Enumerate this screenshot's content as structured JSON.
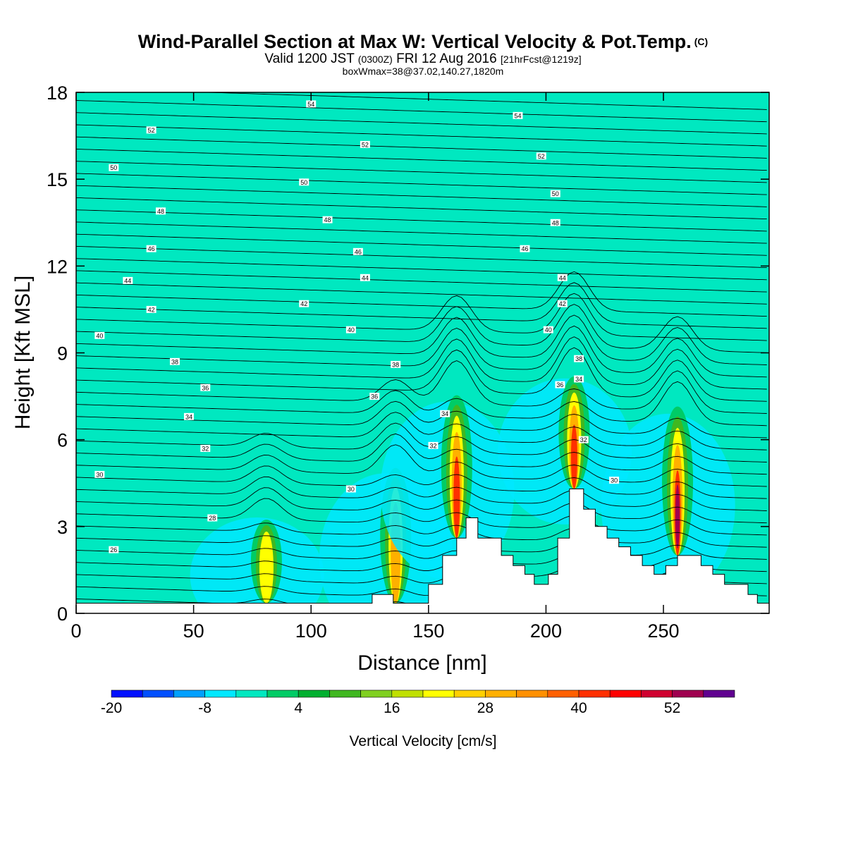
{
  "title": {
    "main": "Wind-Parallel Section at Max W: Vertical Velocity & Pot.Temp.",
    "copyright": "(C)",
    "valid_prefix": "Valid 1200 JST",
    "valid_utc": "(0300Z)",
    "valid_date": "FRI 12 Aug 2016",
    "forecast": "[21hrFcst@1219z]",
    "box_info": "boxWmax=38@37.02,140.27,1820m"
  },
  "chart_data": {
    "type": "heatmap",
    "xlabel": "Distance [nm]",
    "ylabel": "Height [Kft MSL]",
    "xlim": [
      0,
      295
    ],
    "ylim": [
      0,
      18
    ],
    "x_ticks": [
      "0",
      "50",
      "100",
      "150",
      "200",
      "250"
    ],
    "y_ticks": [
      "0",
      "3",
      "6",
      "9",
      "12",
      "15",
      "18"
    ],
    "background_color": "#00e8c0",
    "colorbar": {
      "label": "Vertical Velocity [cm/s]",
      "tick_labels": [
        "-20",
        "-8",
        "4",
        "16",
        "28",
        "40",
        "52"
      ],
      "colors": [
        "#0010ff",
        "#0050ff",
        "#00a0ff",
        "#00e8ff",
        "#00e8c0",
        "#00cc66",
        "#00b030",
        "#40b820",
        "#80d020",
        "#c0e000",
        "#ffff00",
        "#ffd000",
        "#ffb000",
        "#ff9000",
        "#ff6000",
        "#ff3000",
        "#ff0000",
        "#d00030",
        "#a00050",
        "#600090"
      ]
    },
    "terrain": [
      [
        0,
        0.35
      ],
      [
        126,
        0.35
      ],
      [
        126,
        0.65
      ],
      [
        135,
        0.65
      ],
      [
        135,
        0.35
      ],
      [
        150,
        0.35
      ],
      [
        150,
        1.0
      ],
      [
        156,
        1.0
      ],
      [
        156,
        2.0
      ],
      [
        162,
        2.0
      ],
      [
        162,
        2.6
      ],
      [
        166,
        2.6
      ],
      [
        166,
        3.3
      ],
      [
        171,
        3.3
      ],
      [
        171,
        2.6
      ],
      [
        181,
        2.6
      ],
      [
        181,
        2.0
      ],
      [
        186,
        2.0
      ],
      [
        186,
        1.65
      ],
      [
        191,
        1.65
      ],
      [
        191,
        1.35
      ],
      [
        195,
        1.35
      ],
      [
        195,
        1.0
      ],
      [
        201,
        1.0
      ],
      [
        201,
        1.35
      ],
      [
        205,
        1.35
      ],
      [
        205,
        2.6
      ],
      [
        210,
        2.6
      ],
      [
        210,
        4.3
      ],
      [
        216,
        4.3
      ],
      [
        216,
        3.6
      ],
      [
        221,
        3.6
      ],
      [
        221,
        3.0
      ],
      [
        226,
        3.0
      ],
      [
        226,
        2.6
      ],
      [
        231,
        2.6
      ],
      [
        231,
        2.3
      ],
      [
        236,
        2.3
      ],
      [
        236,
        2.0
      ],
      [
        241,
        2.0
      ],
      [
        241,
        1.65
      ],
      [
        246,
        1.65
      ],
      [
        246,
        1.35
      ],
      [
        251,
        1.35
      ],
      [
        251,
        1.65
      ],
      [
        256,
        1.65
      ],
      [
        256,
        2.0
      ],
      [
        266,
        2.0
      ],
      [
        266,
        1.65
      ],
      [
        271,
        1.65
      ],
      [
        271,
        1.35
      ],
      [
        276,
        1.35
      ],
      [
        276,
        1.0
      ],
      [
        286,
        1.0
      ],
      [
        286,
        0.65
      ],
      [
        290,
        0.65
      ],
      [
        290,
        0.35
      ],
      [
        295,
        0.35
      ]
    ],
    "updrafts": [
      {
        "x": 81,
        "top_kft": 3.1,
        "w_max": 24
      },
      {
        "x": 136,
        "top_kft": 4.8,
        "w_max": 30
      },
      {
        "x": 162,
        "top_kft": 7.3,
        "w_max": 40
      },
      {
        "x": 212,
        "top_kft": 8.0,
        "w_max": 42
      },
      {
        "x": 256,
        "top_kft": 6.9,
        "w_max": 52
      }
    ],
    "theta_labels": [
      {
        "text": "54",
        "x": 100,
        "y": 17.6
      },
      {
        "text": "54",
        "x": 188,
        "y": 17.2
      },
      {
        "text": "52",
        "x": 32,
        "y": 16.7
      },
      {
        "text": "52",
        "x": 123,
        "y": 16.2
      },
      {
        "text": "52",
        "x": 198,
        "y": 15.8
      },
      {
        "text": "50",
        "x": 16,
        "y": 15.4
      },
      {
        "text": "50",
        "x": 97,
        "y": 14.9
      },
      {
        "text": "50",
        "x": 204,
        "y": 14.5
      },
      {
        "text": "48",
        "x": 36,
        "y": 13.9
      },
      {
        "text": "48",
        "x": 107,
        "y": 13.6
      },
      {
        "text": "48",
        "x": 204,
        "y": 13.5
      },
      {
        "text": "46",
        "x": 32,
        "y": 12.6
      },
      {
        "text": "46",
        "x": 120,
        "y": 12.5
      },
      {
        "text": "46",
        "x": 191,
        "y": 12.6
      },
      {
        "text": "44",
        "x": 22,
        "y": 11.5
      },
      {
        "text": "44",
        "x": 123,
        "y": 11.6
      },
      {
        "text": "44",
        "x": 207,
        "y": 11.6
      },
      {
        "text": "42",
        "x": 32,
        "y": 10.5
      },
      {
        "text": "42",
        "x": 97,
        "y": 10.7
      },
      {
        "text": "42",
        "x": 207,
        "y": 10.7
      },
      {
        "text": "40",
        "x": 10,
        "y": 9.6
      },
      {
        "text": "40",
        "x": 117,
        "y": 9.8
      },
      {
        "text": "40",
        "x": 201,
        "y": 9.8
      },
      {
        "text": "38",
        "x": 42,
        "y": 8.7
      },
      {
        "text": "38",
        "x": 136,
        "y": 8.6
      },
      {
        "text": "38",
        "x": 214,
        "y": 8.8
      },
      {
        "text": "36",
        "x": 55,
        "y": 7.8
      },
      {
        "text": "36",
        "x": 127,
        "y": 7.5
      },
      {
        "text": "36",
        "x": 206,
        "y": 7.9
      },
      {
        "text": "34",
        "x": 48,
        "y": 6.8
      },
      {
        "text": "34",
        "x": 157,
        "y": 6.9
      },
      {
        "text": "34",
        "x": 214,
        "y": 8.1
      },
      {
        "text": "32",
        "x": 55,
        "y": 5.7
      },
      {
        "text": "32",
        "x": 152,
        "y": 5.8
      },
      {
        "text": "32",
        "x": 216,
        "y": 6.0
      },
      {
        "text": "30",
        "x": 10,
        "y": 4.8
      },
      {
        "text": "30",
        "x": 117,
        "y": 4.3
      },
      {
        "text": "30",
        "x": 229,
        "y": 4.6
      },
      {
        "text": "28",
        "x": 58,
        "y": 3.3
      },
      {
        "text": "26",
        "x": 16,
        "y": 2.2
      }
    ]
  }
}
